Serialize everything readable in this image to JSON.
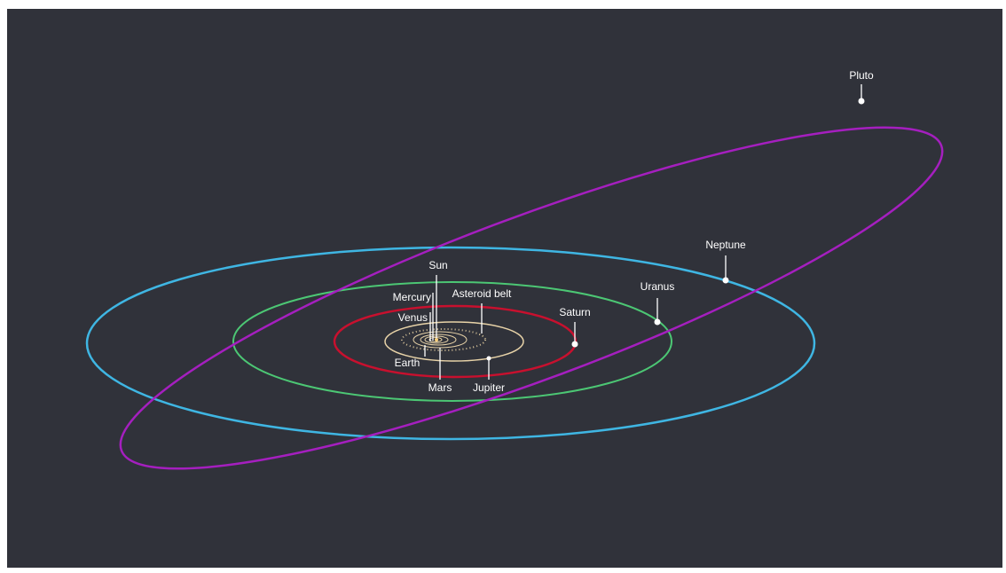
{
  "labels": {
    "pluto": "Pluto",
    "neptune": "Neptune",
    "uranus": "Uranus",
    "saturn": "Saturn",
    "jupiter": "Jupiter",
    "asteroid_belt": "Asteroid belt",
    "sun": "Sun",
    "mercury": "Mercury",
    "venus": "Venus",
    "earth": "Earth",
    "mars": "Mars"
  }
}
